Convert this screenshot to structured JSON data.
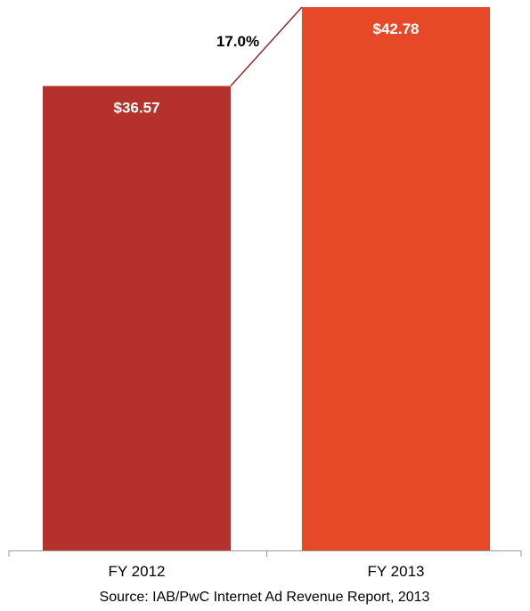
{
  "chart_data": {
    "type": "bar",
    "categories": [
      "FY 2012",
      "FY 2013"
    ],
    "values": [
      36.57,
      42.78
    ],
    "value_labels": [
      "$36.57",
      "$42.78"
    ],
    "colors": [
      "#b5322c",
      "#e64927"
    ],
    "growth_label": "17.0%",
    "connector_color": "#8b2b2b",
    "source": "Source: IAB/PwC Internet Ad Revenue Report, 2013",
    "ylim": [
      0,
      42.78
    ],
    "grid": false,
    "legend": "none"
  }
}
